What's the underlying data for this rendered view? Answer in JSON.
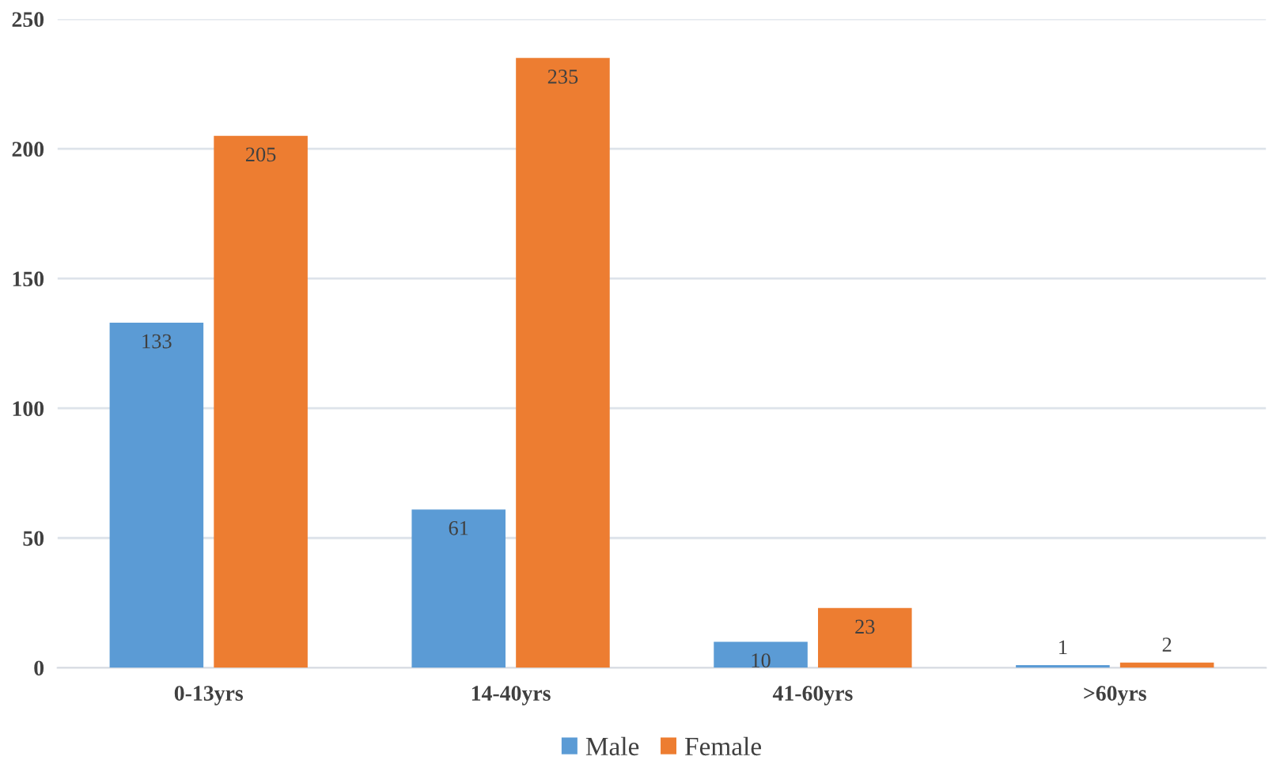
{
  "chart_data": {
    "type": "bar",
    "categories": [
      "0-13yrs",
      "14-40yrs",
      "41-60yrs",
      ">60yrs"
    ],
    "series": [
      {
        "name": "Male",
        "color": "#5b9bd5",
        "values": [
          133,
          61,
          10,
          1
        ]
      },
      {
        "name": "Female",
        "color": "#ed7d31",
        "values": [
          205,
          235,
          23,
          2
        ]
      }
    ],
    "ylim": [
      0,
      250
    ],
    "yticks": [
      0,
      50,
      100,
      150,
      200,
      250
    ],
    "grid": "y",
    "legend": "bottom",
    "data_labels": true
  }
}
